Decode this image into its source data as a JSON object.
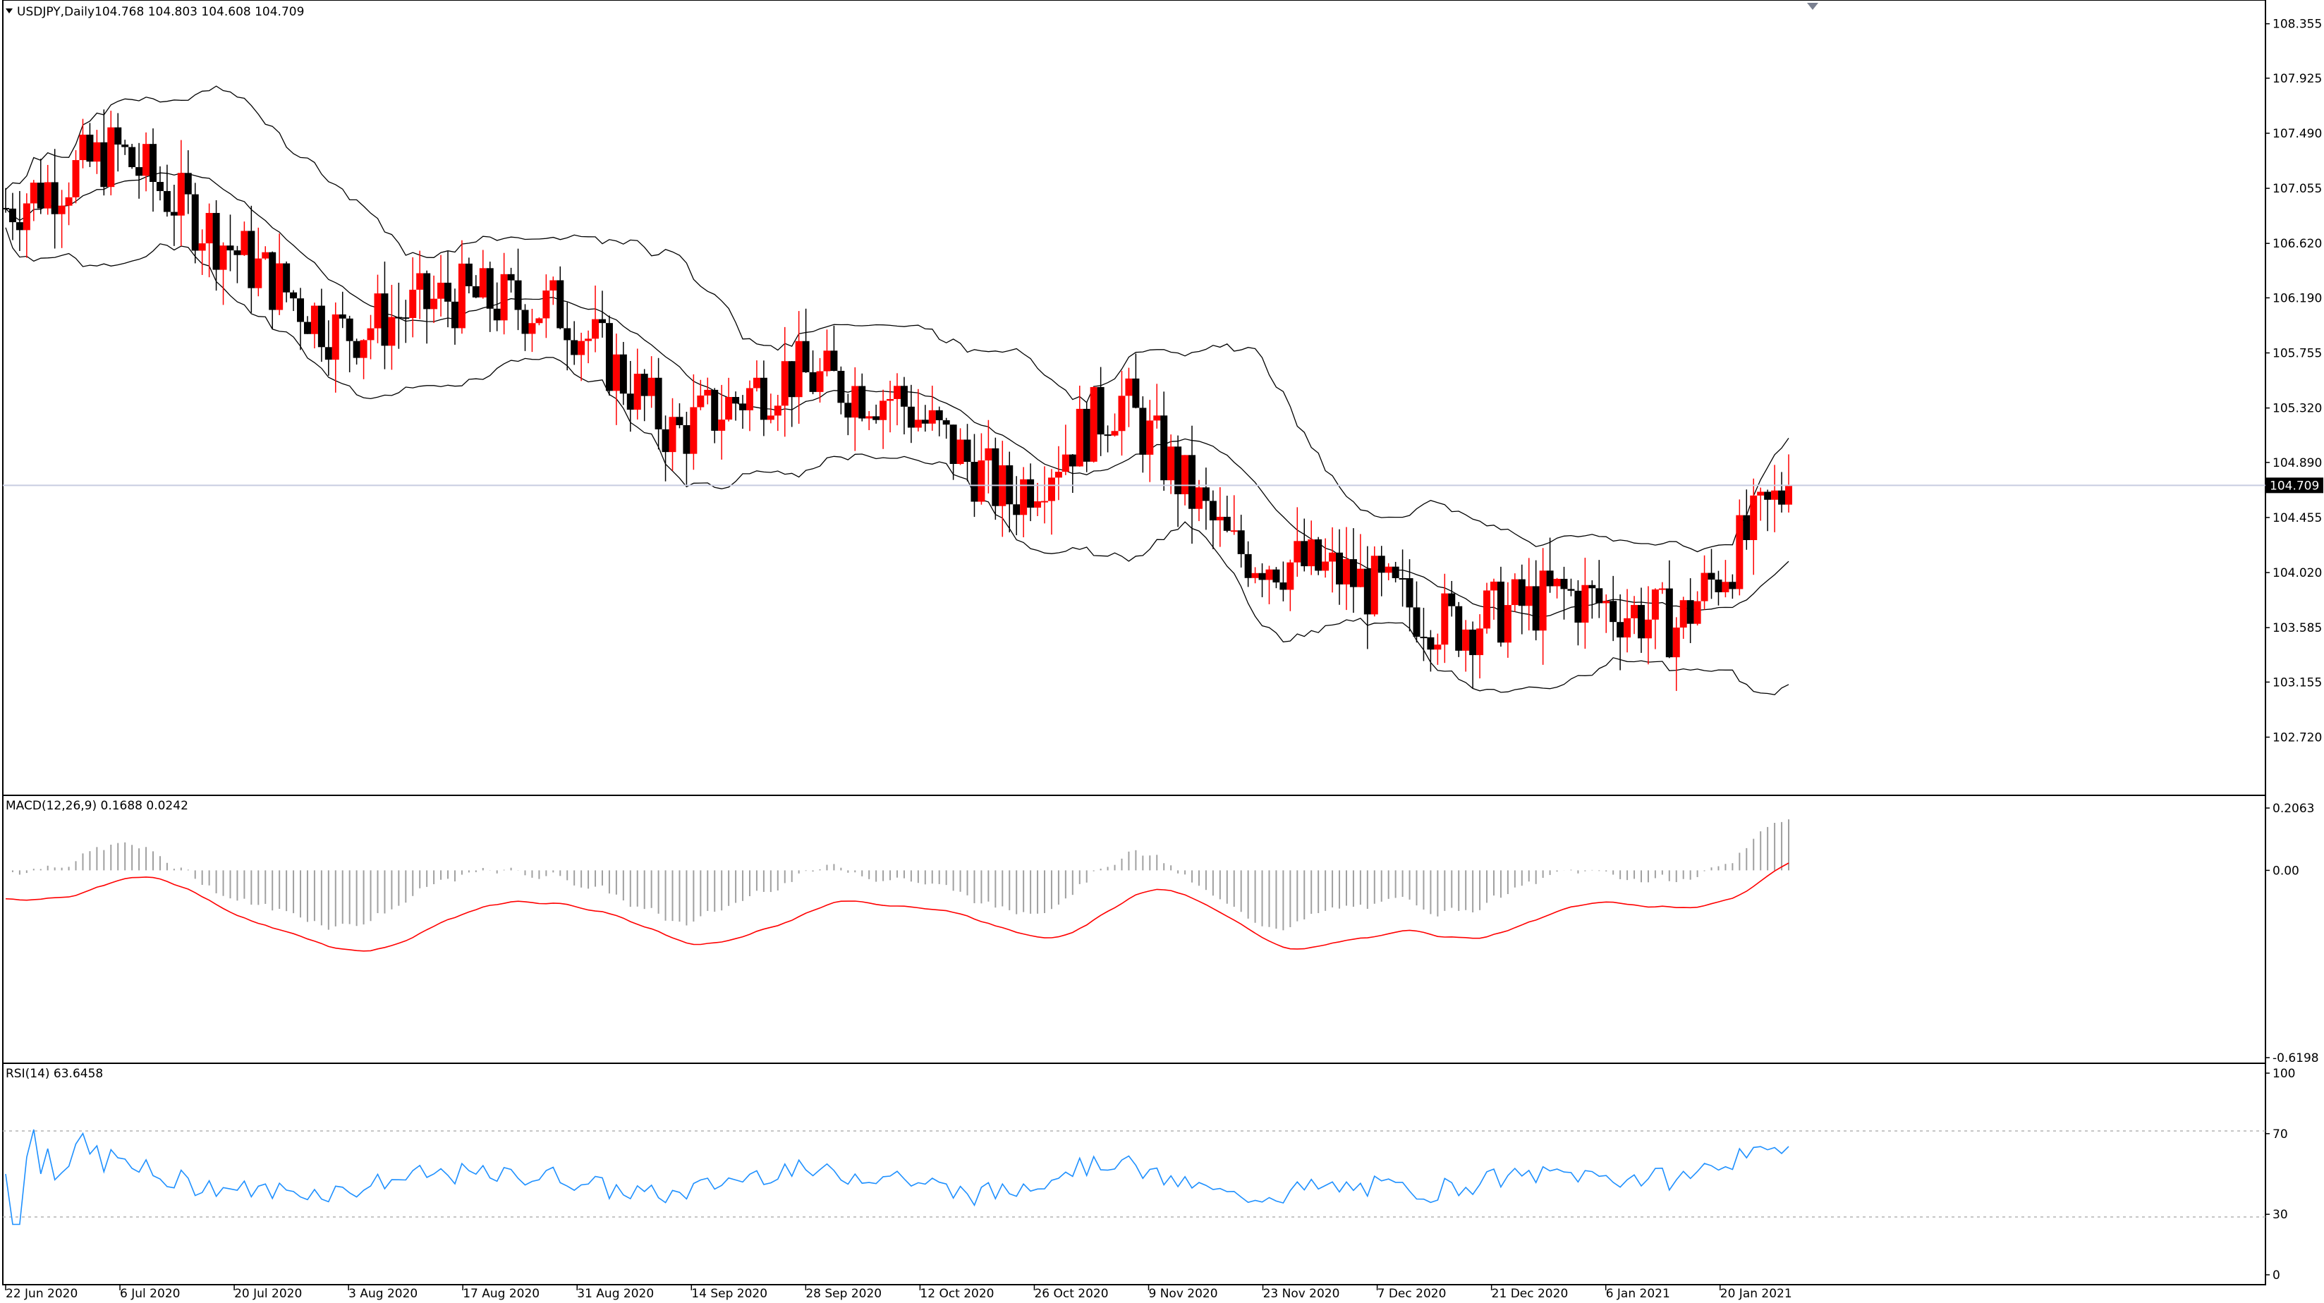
{
  "header": {
    "symbol": "USDJPY,Daily",
    "ohlc": "104.768 104.803 104.608 104.709"
  },
  "price_axis": {
    "ticks": [
      "108.355",
      "107.925",
      "107.490",
      "107.055",
      "106.620",
      "106.190",
      "105.755",
      "105.320",
      "104.890",
      "104.455",
      "104.020",
      "103.585",
      "103.155",
      "102.720"
    ],
    "current_price": "104.709"
  },
  "macd_panel": {
    "label": "MACD(12,26,9) 0.1688 0.0242",
    "ticks": [
      "0.2063",
      "0.00",
      "-0.6198"
    ]
  },
  "rsi_panel": {
    "label": "RSI(14) 63.6458",
    "ticks": [
      "100",
      "70",
      "30",
      "0"
    ]
  },
  "date_axis": {
    "labels": [
      "22 Jun 2020",
      "6 Jul 2020",
      "20 Jul 2020",
      "3 Aug 2020",
      "17 Aug 2020",
      "31 Aug 2020",
      "14 Sep 2020",
      "28 Sep 2020",
      "12 Oct 2020",
      "26 Oct 2020",
      "9 Nov 2020",
      "23 Nov 2020",
      "7 Dec 2020",
      "21 Dec 2020",
      "6 Jan 2021",
      "20 Jan 2021"
    ]
  },
  "colors": {
    "bull": "#ff0000",
    "bear": "#000000",
    "bands": "#000000",
    "macd_hist": "#a0a0a0",
    "macd_signal": "#ff0000",
    "rsi_line": "#1e90ff",
    "current_price_line": "#c8cce0",
    "current_price_bg": "#000000"
  },
  "chart_data": {
    "type": "candlestick",
    "symbol": "USDJPY",
    "timeframe": "Daily",
    "ylim": [
      102.55,
      108.42
    ],
    "close_points": [
      [
        "22 Jun 2020",
        106.9
      ],
      [
        "6 Jul 2020",
        107.35
      ],
      [
        "20 Jul 2020",
        106.6
      ],
      [
        "3 Aug 2020",
        105.9
      ],
      [
        "17 Aug 2020",
        106.2
      ],
      [
        "31 Aug 2020",
        106.1
      ],
      [
        "14 Sep 2020",
        105.1
      ],
      [
        "28 Sep 2020",
        105.6
      ],
      [
        "12 Oct 2020",
        105.4
      ],
      [
        "26 Oct 2020",
        104.6
      ],
      [
        "9 Nov 2020",
        105.4
      ],
      [
        "23 Nov 2020",
        104.2
      ],
      [
        "7 Dec 2020",
        104.0
      ],
      [
        "21 Dec 2020",
        103.6
      ],
      [
        "6 Jan 2021",
        103.85
      ],
      [
        "20 Jan 2021",
        103.6
      ],
      [
        "29 Jan 2021",
        104.709
      ]
    ],
    "macd": {
      "params": "12,26,9",
      "main": 0.1688,
      "signal": 0.0242,
      "ylim": [
        -0.6198,
        0.2063
      ]
    },
    "rsi": {
      "period": 14,
      "value": 63.6458,
      "levels": [
        30,
        70
      ],
      "ylim": [
        0,
        100
      ]
    }
  }
}
